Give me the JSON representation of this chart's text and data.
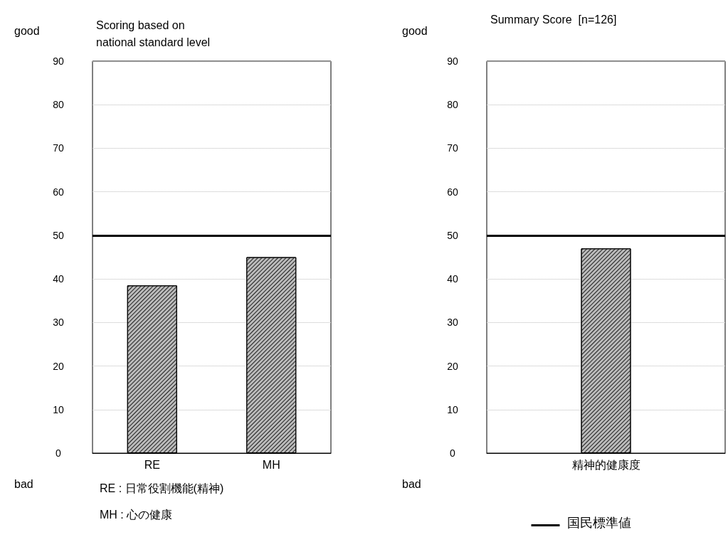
{
  "chart_data": [
    {
      "type": "bar",
      "title": "Scoring based on national standard level",
      "categories": [
        "RE",
        "MH"
      ],
      "series": [
        {
          "color": "#bbbbbb",
          "values": [
            38.5,
            45
          ]
        }
      ],
      "ylim": [
        0,
        90
      ],
      "yticks": [
        0,
        10,
        20,
        30,
        40,
        50,
        60,
        70,
        80,
        90
      ],
      "grid": "y",
      "ref_lines": [
        {
          "axis": "y",
          "value": 50,
          "label": null,
          "color": "#000000"
        }
      ],
      "annotations": [
        "good",
        "bad",
        "RE : 日常役割機能(精神)",
        "MH : 心の健康"
      ]
    },
    {
      "type": "bar",
      "title": "Summary Score  [n=126]",
      "categories": [
        "精神的健康度"
      ],
      "series": [
        {
          "color": "#bbbbbb",
          "values": [
            47
          ]
        }
      ],
      "ylim": [
        0,
        90
      ],
      "yticks": [
        0,
        10,
        20,
        30,
        40,
        50,
        60,
        70,
        80,
        90
      ],
      "grid": "y",
      "ref_lines": [
        {
          "axis": "y",
          "value": 50,
          "label": "国民標準値",
          "color": "#000000"
        }
      ],
      "annotations": [
        "good",
        "bad"
      ]
    }
  ]
}
